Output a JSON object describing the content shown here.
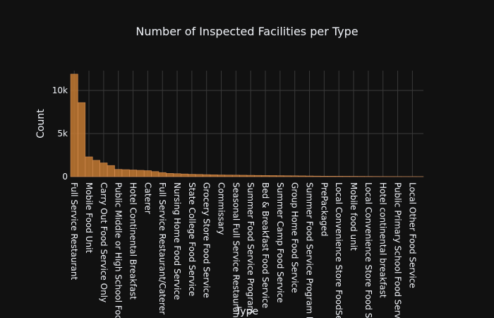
{
  "chart_data": {
    "type": "bar",
    "title": "Number of Inspected Facilities per Type",
    "x_label": "Type",
    "y_label": "Count",
    "categories": [
      "Full Service Restaurant",
      null,
      "Mobile Food Unit",
      null,
      "Carry Out Food Service Only",
      null,
      "Public Middle or High School Food",
      null,
      "Hotel Continental Breakfast",
      null,
      "Caterer",
      null,
      "Full Service Restaurant/Caterer",
      null,
      "Nursing Home Food Service",
      null,
      "State College Food Service",
      null,
      "Grocery Store Food Service",
      null,
      "Commissary",
      null,
      "Seasonal Full Service Restaurant",
      null,
      "Summer Food Service Program",
      null,
      "Bed & Breakfast Food Service",
      null,
      "Summer Camp Food Service",
      null,
      "Group Home Food Service",
      null,
      "Summer Food Service Program Kit",
      null,
      "PrePackaged",
      null,
      "Local Convenience Store FoodServ",
      null,
      "Mobile food unit",
      null,
      "Local Convenience Store Food Serv",
      null,
      "Hotel continental breakfast",
      null,
      "Public Primary School Food Service",
      null,
      "Local Other Food Service",
      null
    ],
    "values": [
      11900,
      8600,
      2300,
      1900,
      1600,
      1300,
      850,
      820,
      780,
      740,
      700,
      600,
      480,
      380,
      350,
      320,
      280,
      260,
      240,
      220,
      200,
      190,
      180,
      170,
      160,
      150,
      140,
      130,
      120,
      110,
      100,
      90,
      80,
      70,
      60,
      55,
      50,
      45,
      40,
      35,
      30,
      25,
      20,
      18,
      15,
      12,
      10,
      8
    ],
    "color": "#c47a33",
    "ylim": [
      0,
      12300
    ],
    "yticks": [
      0,
      {
        "value": 5000,
        "label": "5k"
      },
      {
        "value": 10000,
        "label": "10k"
      }
    ],
    "grid": true
  }
}
